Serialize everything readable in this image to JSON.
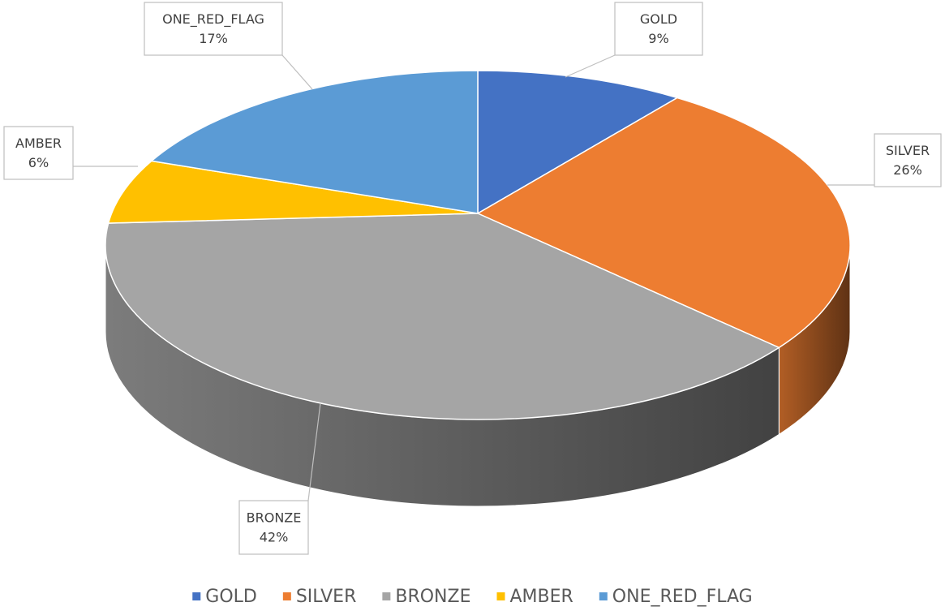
{
  "chart_data": {
    "type": "pie3d",
    "categories": [
      "GOLD",
      "SILVER",
      "BRONZE",
      "AMBER",
      "ONE_RED_FLAG"
    ],
    "values": [
      9,
      26,
      42,
      6,
      17
    ],
    "value_labels": [
      "9%",
      "26%",
      "42%",
      "6%",
      "17%"
    ],
    "colors": [
      "#4472c4",
      "#ed7d31",
      "#a5a5a5",
      "#ffc000",
      "#5b9bd5"
    ],
    "legend": "bottom"
  }
}
